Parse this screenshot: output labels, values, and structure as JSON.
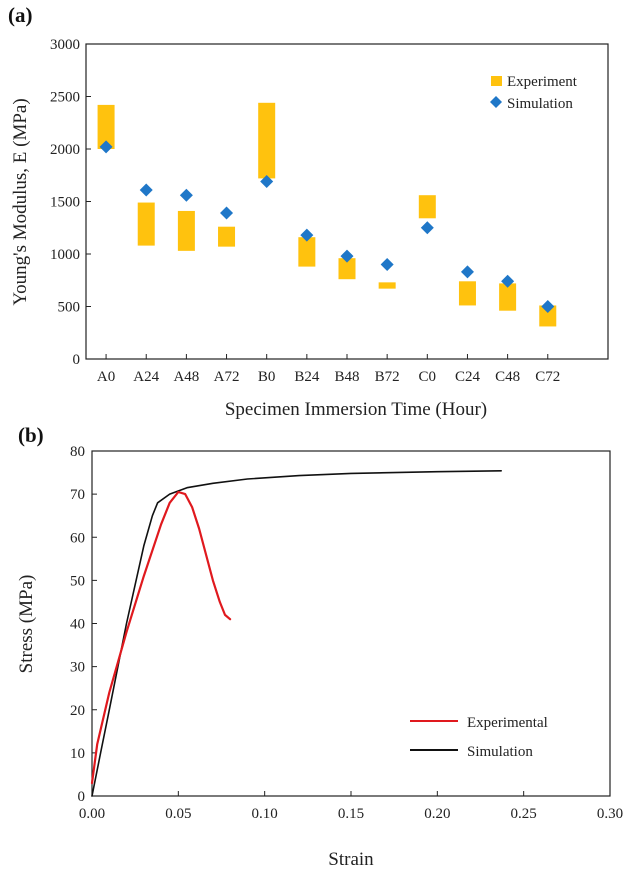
{
  "chart_data": [
    {
      "type": "bar",
      "panel_label": "(a)",
      "title": "",
      "xlabel": "Specimen Immersion Time (Hour)",
      "ylabel": "Young's Modulus, E (MPa)",
      "ylim": [
        0,
        3000
      ],
      "yticks": [
        0,
        500,
        1000,
        1500,
        2000,
        2500,
        3000
      ],
      "categories": [
        "A0",
        "A24",
        "A48",
        "A72",
        "B0",
        "B24",
        "B48",
        "B72",
        "C0",
        "C24",
        "C48",
        "C72"
      ],
      "legend_position": "top-right",
      "series": [
        {
          "name": "Experiment",
          "kind": "range-bar",
          "color": "#FFC20E",
          "low": [
            2000,
            1080,
            1030,
            1070,
            1720,
            880,
            760,
            670,
            1340,
            510,
            460,
            310
          ],
          "high": [
            2420,
            1490,
            1410,
            1260,
            2440,
            1160,
            960,
            730,
            1560,
            740,
            720,
            510
          ]
        },
        {
          "name": "Simulation",
          "kind": "scatter-diamond",
          "color": "#1F77C8",
          "values": [
            2020,
            1610,
            1560,
            1390,
            1690,
            1180,
            980,
            900,
            1250,
            830,
            740,
            500
          ]
        }
      ]
    },
    {
      "type": "line",
      "panel_label": "(b)",
      "title": "",
      "xlabel": "Strain",
      "ylabel": "Stress (MPa)",
      "xlim": [
        0,
        0.3
      ],
      "ylim": [
        0,
        80
      ],
      "xticks": [
        "0.00",
        "0.05",
        "0.10",
        "0.15",
        "0.20",
        "0.25",
        "0.30"
      ],
      "yticks": [
        0,
        10,
        20,
        30,
        40,
        50,
        60,
        70,
        80
      ],
      "legend_position": "bottom-right",
      "series": [
        {
          "name": "Experimental",
          "color": "#E0191E",
          "x": [
            0.0,
            0.003,
            0.01,
            0.02,
            0.03,
            0.04,
            0.045,
            0.05,
            0.054,
            0.058,
            0.062,
            0.066,
            0.07,
            0.074,
            0.077,
            0.08
          ],
          "y": [
            3,
            12,
            24,
            38,
            51,
            63,
            68,
            70.5,
            70,
            67,
            62,
            56,
            50,
            45,
            42,
            41
          ]
        },
        {
          "name": "Simulation",
          "color": "#111111",
          "x": [
            0.0,
            0.005,
            0.01,
            0.02,
            0.03,
            0.035,
            0.038,
            0.045,
            0.055,
            0.07,
            0.09,
            0.12,
            0.15,
            0.2,
            0.237
          ],
          "y": [
            0,
            10,
            20,
            40,
            58,
            65,
            68,
            70,
            71.5,
            72.5,
            73.5,
            74.3,
            74.8,
            75.2,
            75.4
          ]
        }
      ]
    }
  ]
}
